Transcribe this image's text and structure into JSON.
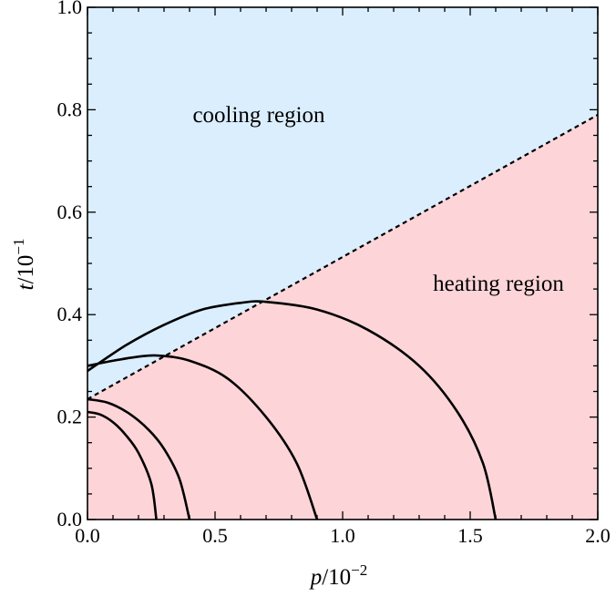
{
  "chart_data": {
    "type": "line",
    "title": "",
    "xlabel": {
      "var": "p",
      "base": "/10",
      "exp": "−2"
    },
    "ylabel": {
      "var": "t",
      "base": "/10",
      "exp": "−1"
    },
    "xlim": [
      0.0,
      2.0
    ],
    "ylim": [
      0.0,
      1.0
    ],
    "x_ticks": [
      0.0,
      0.5,
      1.0,
      1.5,
      2.0
    ],
    "x_tick_labels": [
      "0.0",
      "0.5",
      "1.0",
      "1.5",
      "2.0"
    ],
    "y_ticks": [
      0.0,
      0.2,
      0.4,
      0.6,
      0.8,
      1.0
    ],
    "y_tick_labels": [
      "0.0",
      "0.2",
      "0.4",
      "0.6",
      "0.8",
      "1.0"
    ],
    "grid": false,
    "regions": [
      {
        "name": "cooling region",
        "color": "#dbeefe",
        "position": "above boundary"
      },
      {
        "name": "heating region",
        "color": "#fdd5d8",
        "position": "below boundary"
      }
    ],
    "boundary": {
      "style": "dashed",
      "color": "#000000",
      "x": [
        0.0,
        2.0
      ],
      "y": [
        0.235,
        0.79
      ]
    },
    "series": [
      {
        "color": "#000000",
        "x": [
          0.0,
          0.05,
          0.1,
          0.15,
          0.2,
          0.25,
          0.27
        ],
        "y": [
          0.21,
          0.205,
          0.19,
          0.165,
          0.13,
          0.07,
          0.0
        ]
      },
      {
        "color": "#000000",
        "x": [
          0.0,
          0.08,
          0.16,
          0.24,
          0.3,
          0.36,
          0.4
        ],
        "y": [
          0.235,
          0.228,
          0.208,
          0.175,
          0.138,
          0.08,
          0.0
        ]
      },
      {
        "color": "#000000",
        "x": [
          0.0,
          0.1,
          0.2,
          0.28,
          0.4,
          0.55,
          0.7,
          0.82,
          0.9
        ],
        "y": [
          0.3,
          0.31,
          0.318,
          0.32,
          0.31,
          0.275,
          0.2,
          0.11,
          0.0
        ]
      },
      {
        "color": "#000000",
        "x": [
          0.0,
          0.15,
          0.3,
          0.45,
          0.6,
          0.7,
          0.9,
          1.1,
          1.3,
          1.45,
          1.55,
          1.6
        ],
        "y": [
          0.29,
          0.34,
          0.38,
          0.41,
          0.423,
          0.425,
          0.41,
          0.37,
          0.3,
          0.21,
          0.11,
          0.0
        ]
      }
    ]
  }
}
